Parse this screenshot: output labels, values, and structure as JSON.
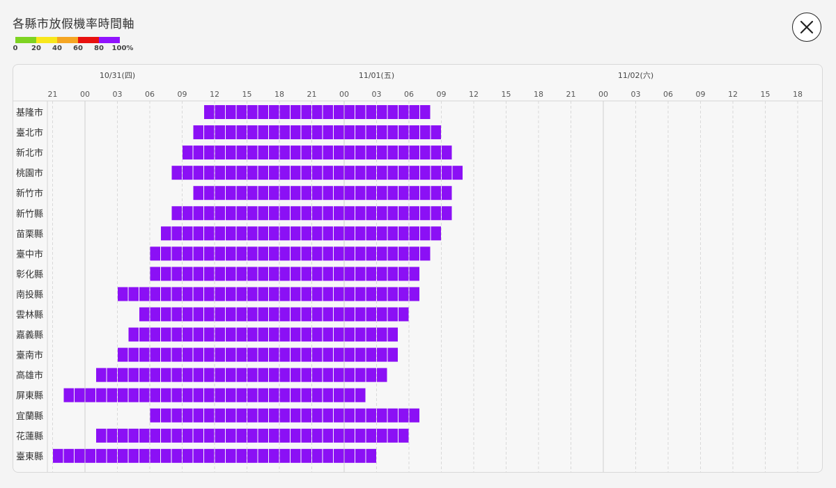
{
  "title": "各縣市放假機率時間軸",
  "legend": {
    "labels": [
      "0",
      "20",
      "40",
      "60",
      "80",
      "100%"
    ],
    "colors": [
      "#7ed321",
      "#f8e71c",
      "#f5a623",
      "#e8110f",
      "#9013fe"
    ]
  },
  "close_icon": "close-icon",
  "chart_data": {
    "type": "bar",
    "orientation": "horizontal-timeline",
    "x_axis": {
      "day_labels": [
        {
          "label": "10/31(四)",
          "hour_index": 12
        },
        {
          "label": "11/01(五)",
          "hour_index": 36
        },
        {
          "label": "11/02(六)",
          "hour_index": 60
        }
      ],
      "tick_labels": [
        "21",
        "00",
        "03",
        "06",
        "09",
        "12",
        "15",
        "18",
        "21",
        "00",
        "03",
        "06",
        "09",
        "12",
        "15",
        "18",
        "21",
        "00",
        "03",
        "06",
        "09",
        "12",
        "15",
        "18"
      ],
      "tick_start_hour": 0,
      "tick_step_hours": 3,
      "range_hours": [
        -3,
        72
      ]
    },
    "bar_color": "#8b10f5",
    "cell_hours": 1,
    "rows": [
      {
        "name": "基隆市",
        "start": 14,
        "end": 35,
        "probability": 100
      },
      {
        "name": "臺北市",
        "start": 13,
        "end": 36,
        "probability": 100
      },
      {
        "name": "新北市",
        "start": 12,
        "end": 37,
        "probability": 100
      },
      {
        "name": "桃園市",
        "start": 11,
        "end": 38,
        "probability": 100
      },
      {
        "name": "新竹市",
        "start": 13,
        "end": 37,
        "probability": 100
      },
      {
        "name": "新竹縣",
        "start": 11,
        "end": 37,
        "probability": 100
      },
      {
        "name": "苗栗縣",
        "start": 10,
        "end": 36,
        "probability": 100
      },
      {
        "name": "臺中市",
        "start": 9,
        "end": 35,
        "probability": 100
      },
      {
        "name": "彰化縣",
        "start": 9,
        "end": 34,
        "probability": 100
      },
      {
        "name": "南投縣",
        "start": 6,
        "end": 34,
        "probability": 100
      },
      {
        "name": "雲林縣",
        "start": 8,
        "end": 33,
        "probability": 100
      },
      {
        "name": "嘉義縣",
        "start": 7,
        "end": 32,
        "probability": 100
      },
      {
        "name": "臺南市",
        "start": 6,
        "end": 32,
        "probability": 100
      },
      {
        "name": "高雄市",
        "start": 4,
        "end": 31,
        "probability": 100
      },
      {
        "name": "屏東縣",
        "start": 1,
        "end": 29,
        "probability": 100
      },
      {
        "name": "宜蘭縣",
        "start": 9,
        "end": 34,
        "probability": 100
      },
      {
        "name": "花蓮縣",
        "start": 4,
        "end": 33,
        "probability": 100
      },
      {
        "name": "臺東縣",
        "start": 0,
        "end": 30,
        "probability": 100
      }
    ]
  }
}
